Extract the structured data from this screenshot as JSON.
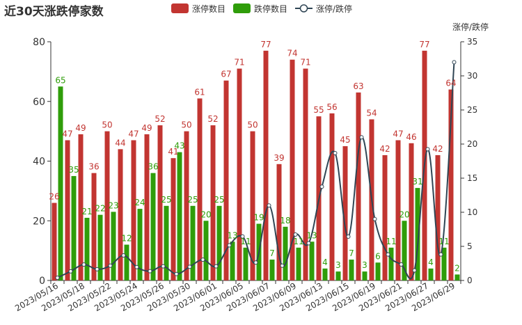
{
  "chart_data": {
    "type": "bar",
    "title": "近30天涨跌停家数",
    "legend": [
      {
        "name": "涨停数目",
        "color": "#c23531",
        "icon": "bar-swatch"
      },
      {
        "name": "跌停数目",
        "color": "#2f9d0a",
        "icon": "bar-swatch"
      },
      {
        "name": "涨停/跌停",
        "color": "#2f4554",
        "icon": "line-circle-marker"
      }
    ],
    "x_tick_labels": [
      "2023/05/16",
      "2023/05/18",
      "2023/05/22",
      "2023/05/24",
      "2023/05/26",
      "2023/05/30",
      "2023/06/01",
      "2023/06/05",
      "2023/06/07",
      "2023/06/09",
      "2023/06/13",
      "2023/06/15",
      "2023/06/19",
      "2023/06/21",
      "2023/06/27",
      "2023/06/29"
    ],
    "categories": [
      "2023/05/16",
      "2023/05/17",
      "2023/05/18",
      "2023/05/19",
      "2023/05/22",
      "2023/05/23",
      "2023/05/24",
      "2023/05/25",
      "2023/05/26",
      "2023/05/29",
      "2023/05/30",
      "2023/05/31",
      "2023/06/01",
      "2023/06/02",
      "2023/06/05",
      "2023/06/06",
      "2023/06/07",
      "2023/06/08",
      "2023/06/09",
      "2023/06/12",
      "2023/06/13",
      "2023/06/14",
      "2023/06/15",
      "2023/06/16",
      "2023/06/19",
      "2023/06/20",
      "2023/06/21",
      "2023/06/26",
      "2023/06/27",
      "2023/06/28",
      "2023/06/29"
    ],
    "series": [
      {
        "name": "涨停数目",
        "type": "bar",
        "axis": "left",
        "values": [
          26,
          47,
          49,
          36,
          50,
          44,
          47,
          49,
          52,
          41,
          50,
          61,
          52,
          67,
          71,
          50,
          77,
          39,
          74,
          71,
          55,
          56,
          45,
          63,
          54,
          42,
          47,
          46,
          77,
          42,
          64
        ]
      },
      {
        "name": "跌停数目",
        "type": "bar",
        "axis": "left",
        "values": [
          65,
          35,
          21,
          22,
          23,
          12,
          24,
          36,
          25,
          43,
          25,
          20,
          25,
          13,
          11,
          19,
          7,
          18,
          11,
          13,
          4,
          3,
          7,
          3,
          6,
          11,
          20,
          31,
          4,
          11,
          2
        ]
      },
      {
        "name": "涨停/跌停",
        "type": "line",
        "axis": "right",
        "values": [
          0.4,
          1.34,
          2.33,
          1.64,
          2.17,
          3.67,
          1.96,
          1.36,
          2.08,
          0.95,
          2.0,
          3.05,
          2.08,
          5.15,
          6.45,
          2.63,
          11.0,
          2.17,
          6.73,
          5.46,
          13.75,
          18.67,
          6.43,
          21.0,
          9.0,
          3.82,
          2.35,
          1.48,
          19.25,
          3.82,
          32.0
        ]
      }
    ],
    "y_left": {
      "min": 0,
      "max": 80,
      "ticks": [
        0,
        20,
        40,
        60,
        80
      ]
    },
    "y_right": {
      "min": 0,
      "max": 35,
      "ticks": [
        0,
        5,
        10,
        15,
        20,
        25,
        30,
        35
      ],
      "label": "涨停/跌停"
    },
    "grid": false,
    "legend_position": "top-center"
  }
}
